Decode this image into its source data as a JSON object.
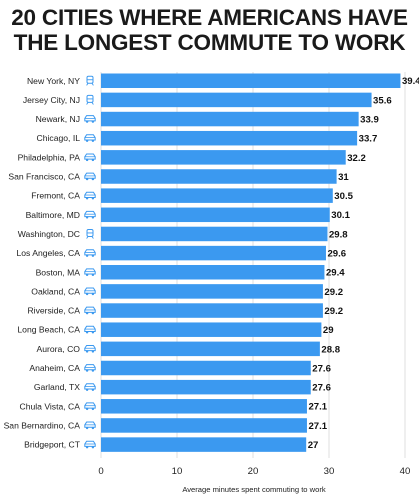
{
  "chart_data": {
    "type": "bar",
    "orientation": "horizontal",
    "title": "20 CITIES WHERE AMERICANS HAVE THE LONGEST COMMUTE TO WORK",
    "xlabel": "Average minutes spent commuting to work",
    "xlim": [
      0,
      40
    ],
    "xticks": [
      0,
      10,
      20,
      30,
      40
    ],
    "grid": "vertical",
    "bar_color": "#3b99f0",
    "categories": [
      "New York, NY",
      "Jersey City, NJ",
      "Newark, NJ",
      "Chicago, IL",
      "Philadelphia, PA",
      "San Francisco, CA",
      "Fremont, CA",
      "Baltimore, MD",
      "Washington, DC",
      "Los Angeles, CA",
      "Boston, MA",
      "Oakland, CA",
      "Riverside, CA",
      "Long Beach, CA",
      "Aurora, CO",
      "Anaheim, CA",
      "Garland, TX",
      "Chula Vista, CA",
      "San Bernardino, CA",
      "Bridgeport, CT"
    ],
    "values": [
      39.4,
      35.6,
      33.9,
      33.7,
      32.2,
      31,
      30.5,
      30.1,
      29.8,
      29.6,
      29.4,
      29.2,
      29.2,
      29,
      28.8,
      27.6,
      27.6,
      27.1,
      27.1,
      27
    ],
    "icons": [
      "train-icon",
      "train-icon",
      "car-icon",
      "car-icon",
      "car-icon",
      "car-icon",
      "car-icon",
      "car-icon",
      "train-icon",
      "car-icon",
      "car-icon",
      "car-icon",
      "car-icon",
      "car-icon",
      "car-icon",
      "car-icon",
      "car-icon",
      "car-icon",
      "car-icon",
      "car-icon"
    ]
  }
}
